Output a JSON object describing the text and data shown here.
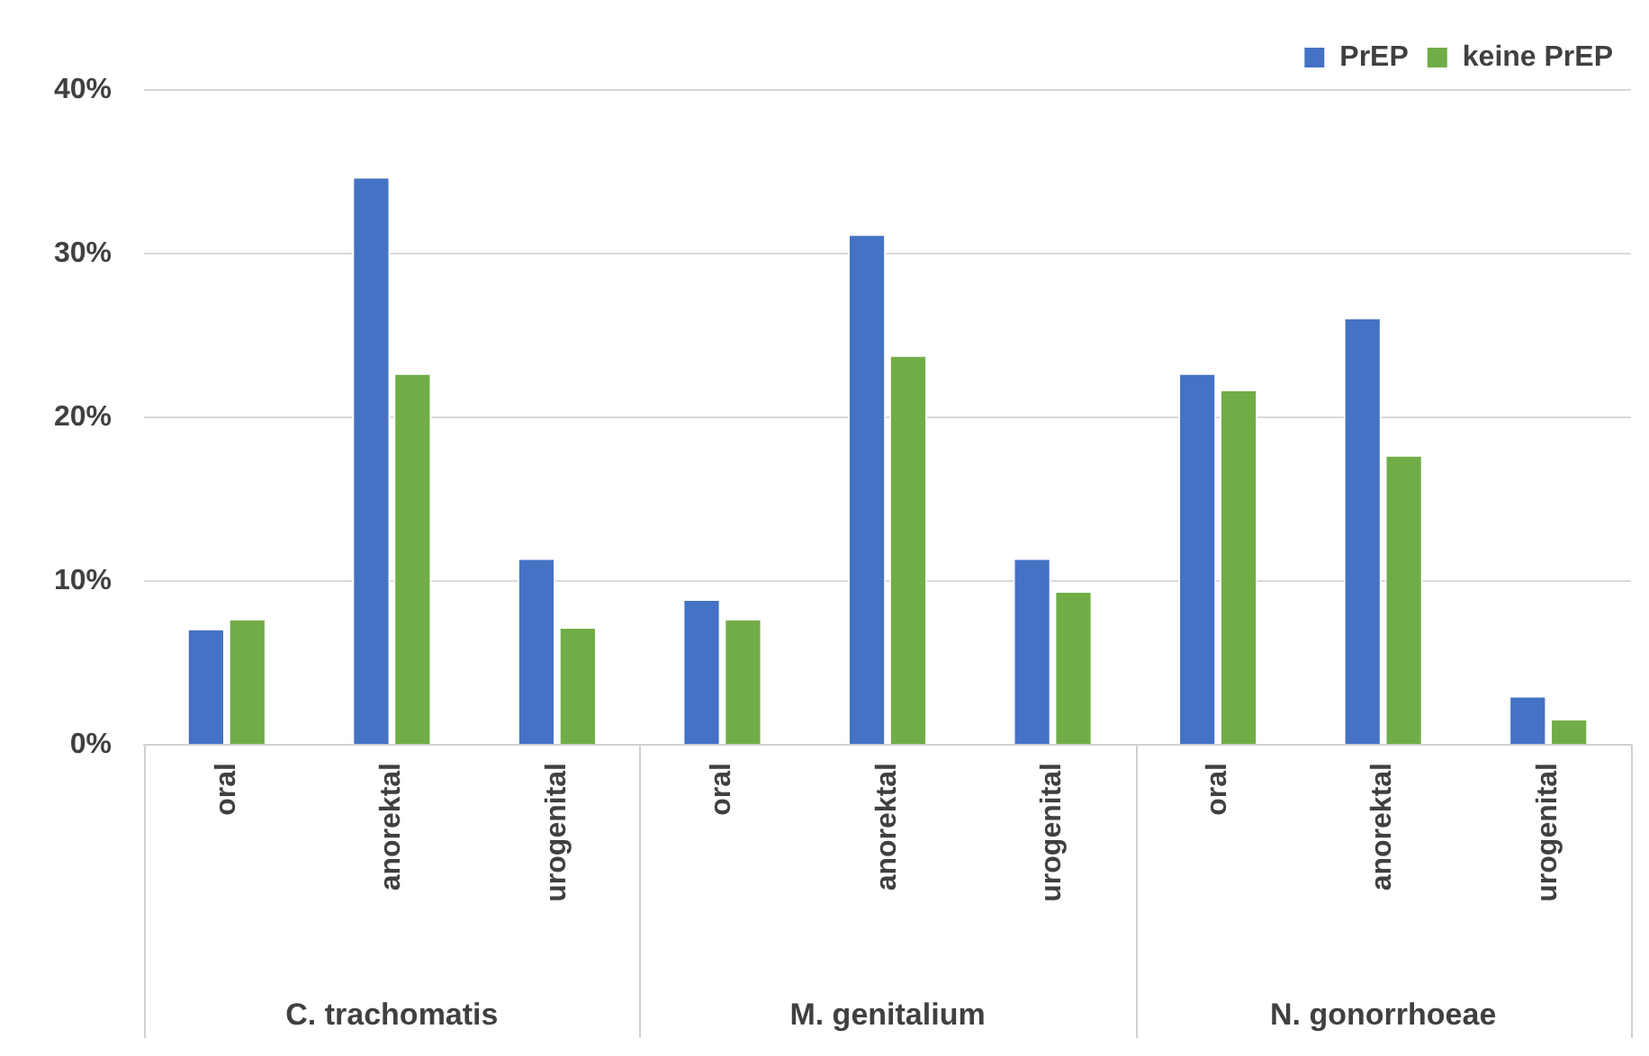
{
  "chart_data": {
    "type": "bar",
    "categories": [
      "oral",
      "anorektal",
      "urogenital",
      "oral",
      "anorektal",
      "urogenital",
      "oral",
      "anorektal",
      "urogenital"
    ],
    "annotations": [
      "C. trachomatis",
      "M. genitalium",
      "N. gonorrhoeae"
    ],
    "series": [
      {
        "name": "PrEP",
        "color": "#4472c4",
        "values": [
          7.1,
          34.7,
          11.4,
          8.9,
          31.2,
          11.4,
          22.7,
          26.1,
          3.0
        ]
      },
      {
        "name": "keine PrEP",
        "color": "#70ad47",
        "values": [
          7.7,
          22.7,
          7.2,
          7.7,
          23.8,
          9.4,
          21.7,
          17.7,
          1.6
        ]
      }
    ],
    "ylim": [
      0,
      40
    ],
    "yticks": [
      {
        "value": 0,
        "label": "0%"
      },
      {
        "value": 10,
        "label": "10%"
      },
      {
        "value": 20,
        "label": "20%"
      },
      {
        "value": 30,
        "label": "30%"
      },
      {
        "value": 40,
        "label": "40%"
      }
    ],
    "grid": "y",
    "legend": "top right"
  }
}
